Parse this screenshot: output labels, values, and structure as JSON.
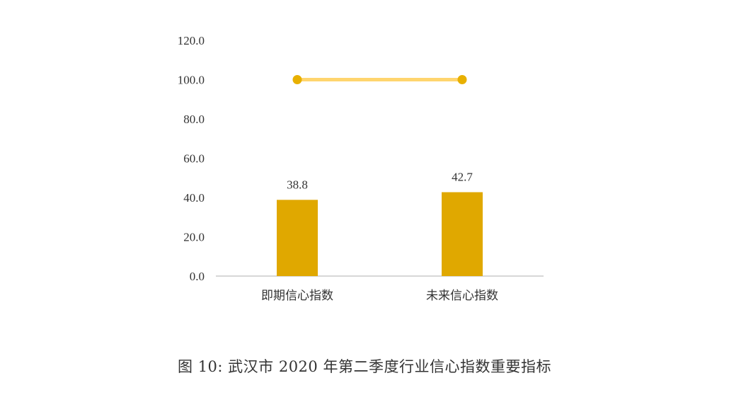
{
  "chart_data": {
    "type": "bar",
    "categories": [
      "即期信心指数",
      "未来信心指数"
    ],
    "values": [
      38.8,
      42.7
    ],
    "value_labels": [
      "38.8",
      "42.7"
    ],
    "reference_line": {
      "values": [
        100.0,
        100.0
      ]
    },
    "ylim": [
      0,
      120
    ],
    "yticks": [
      "0.0",
      "20.0",
      "40.0",
      "60.0",
      "80.0",
      "100.0",
      "120.0"
    ],
    "ytick_values": [
      0,
      20,
      40,
      60,
      80,
      100,
      120
    ],
    "grid": false,
    "legend": "none",
    "colors": {
      "bar": "#E0A800",
      "line": "#FFD56E",
      "marker": "#E8B000",
      "axis": "#BFBFBF",
      "text": "#333333"
    }
  },
  "caption": "图 10: 武汉市 2020 年第二季度行业信心指数重要指标"
}
